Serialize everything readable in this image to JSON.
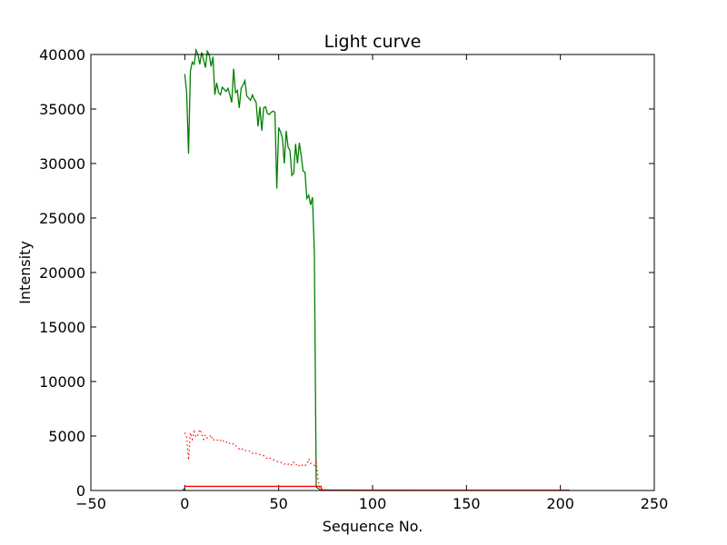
{
  "chart_data": {
    "type": "line",
    "title": "Light curve",
    "xlabel": "Sequence No.",
    "ylabel": "Intensity",
    "xlim": [
      -50,
      250
    ],
    "ylim": [
      0,
      40000
    ],
    "xticks": [
      -50,
      0,
      50,
      100,
      150,
      200,
      250
    ],
    "yticks": [
      0,
      5000,
      10000,
      15000,
      20000,
      25000,
      30000,
      35000,
      40000
    ],
    "xtick_labels": [
      "−50",
      "0",
      "50",
      "100",
      "150",
      "200",
      "250"
    ],
    "ytick_labels": [
      "0",
      "5000",
      "10000",
      "15000",
      "20000",
      "25000",
      "30000",
      "35000",
      "40000"
    ],
    "grid": false,
    "series": [
      {
        "color": "#008000",
        "style": "solid",
        "x": [
          0,
          1,
          2,
          3,
          4,
          5,
          6,
          7,
          8,
          9,
          10,
          11,
          12,
          13,
          14,
          15,
          16,
          17,
          18,
          19,
          20,
          21,
          22,
          23,
          24,
          25,
          26,
          27,
          28,
          29,
          30,
          31,
          32,
          33,
          34,
          35,
          36,
          37,
          38,
          39,
          40,
          41,
          42,
          43,
          44,
          45,
          46,
          47,
          48,
          49,
          50,
          51,
          52,
          53,
          54,
          55,
          56,
          57,
          58,
          59,
          60,
          61,
          62,
          63,
          64,
          65,
          66,
          67,
          68,
          69,
          70,
          71,
          72,
          73,
          74,
          75,
          80,
          100,
          150,
          200,
          205
        ],
        "y": [
          38200,
          36500,
          30900,
          38500,
          39300,
          39100,
          40400,
          40000,
          39100,
          40200,
          39500,
          38800,
          40300,
          40000,
          38900,
          39800,
          36300,
          37400,
          36500,
          36300,
          37000,
          36800,
          36600,
          36900,
          36300,
          35600,
          38700,
          36500,
          36700,
          35100,
          36900,
          37200,
          37600,
          36200,
          36000,
          35800,
          36300,
          35900,
          35600,
          33400,
          35200,
          33000,
          35100,
          35200,
          34600,
          34500,
          34700,
          34800,
          34700,
          27700,
          33300,
          32900,
          32300,
          30000,
          33000,
          31500,
          31200,
          28900,
          29100,
          31800,
          30000,
          31900,
          30700,
          29300,
          29200,
          26800,
          27100,
          26200,
          26900,
          21800,
          300,
          200,
          80,
          60,
          50,
          50,
          40,
          30,
          20,
          20,
          20
        ]
      },
      {
        "color": "#ff0000",
        "style": "dotted",
        "x": [
          0,
          1,
          2,
          3,
          4,
          5,
          6,
          7,
          8,
          9,
          10,
          11,
          12,
          13,
          14,
          15,
          16,
          17,
          18,
          19,
          20,
          21,
          22,
          23,
          24,
          25,
          26,
          27,
          28,
          29,
          30,
          31,
          32,
          33,
          34,
          35,
          36,
          37,
          38,
          39,
          40,
          41,
          42,
          43,
          44,
          45,
          46,
          47,
          48,
          49,
          50,
          51,
          52,
          53,
          54,
          55,
          56,
          57,
          58,
          59,
          60,
          61,
          62,
          63,
          64,
          65,
          66,
          67,
          68,
          69,
          70,
          71,
          72,
          73,
          74,
          75,
          100,
          150,
          205
        ],
        "y": [
          5300,
          5000,
          2800,
          5300,
          4700,
          5400,
          4900,
          5100,
          5600,
          5200,
          4700,
          5100,
          4800,
          4900,
          5100,
          4600,
          4700,
          4700,
          4500,
          4600,
          4700,
          4400,
          4400,
          4500,
          4300,
          4200,
          4300,
          4100,
          4000,
          3800,
          3900,
          3700,
          3700,
          3600,
          3600,
          3600,
          3400,
          3500,
          3400,
          3300,
          3300,
          3200,
          3200,
          3100,
          2900,
          3000,
          2900,
          2800,
          2800,
          2700,
          2600,
          2600,
          2500,
          2400,
          2500,
          2400,
          2500,
          2300,
          2600,
          2500,
          2200,
          2300,
          2200,
          2400,
          2300,
          2400,
          2900,
          2500,
          2400,
          2300,
          2600,
          1000,
          50,
          40,
          30,
          30,
          20,
          20,
          20
        ]
      },
      {
        "color": "#ff0000",
        "style": "solid",
        "x": [
          0,
          72,
          72.5,
          73,
          100,
          150,
          205
        ],
        "y": [
          380,
          380,
          380,
          20,
          20,
          20,
          20
        ]
      },
      {
        "color": "#0000ff",
        "style": "solid",
        "x": [
          -1,
          0
        ],
        "y": [
          100,
          100
        ]
      }
    ]
  }
}
